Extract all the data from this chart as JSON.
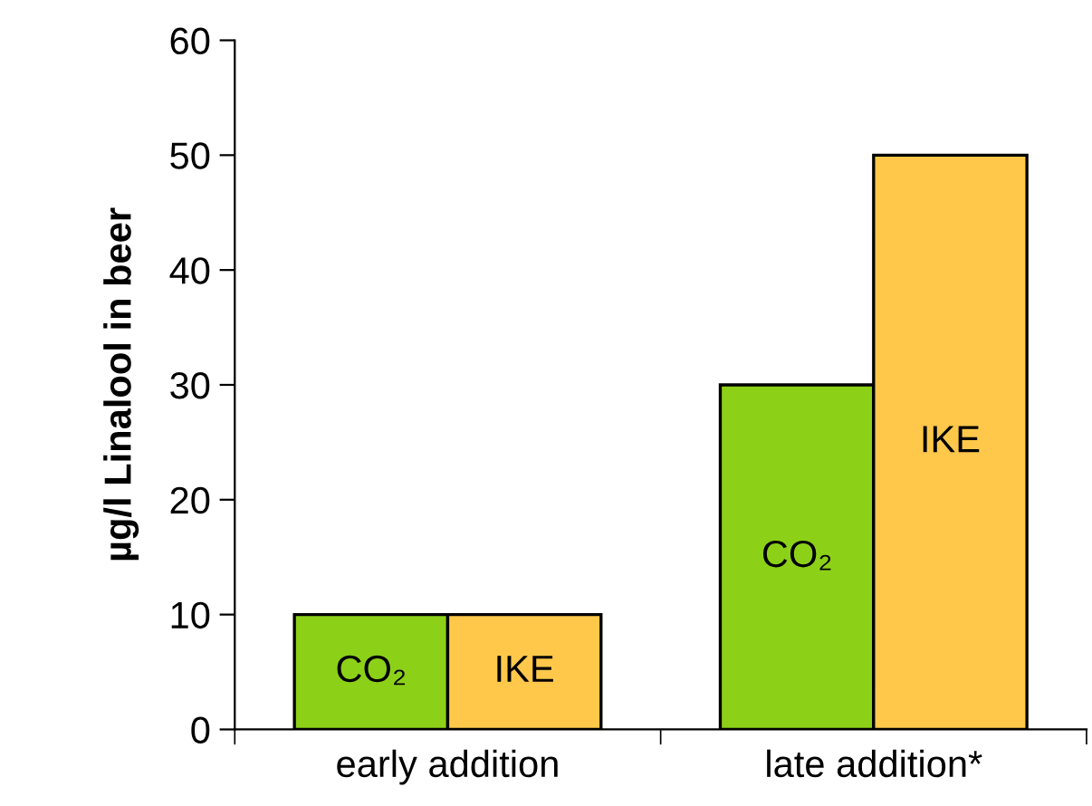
{
  "chart_data": {
    "type": "bar",
    "ylabel": "µg/l Linalool in beer",
    "categories": [
      "early addition",
      "late addition*"
    ],
    "series": [
      {
        "name": "CO₂",
        "color": "#8cd118",
        "values": [
          10,
          30
        ]
      },
      {
        "name": "IKE",
        "color": "#ffc84a",
        "values": [
          10,
          50
        ]
      }
    ],
    "ylim": [
      0,
      60
    ],
    "yticks": [
      0,
      10,
      20,
      30,
      40,
      50,
      60
    ],
    "grid": false,
    "legend": false
  }
}
